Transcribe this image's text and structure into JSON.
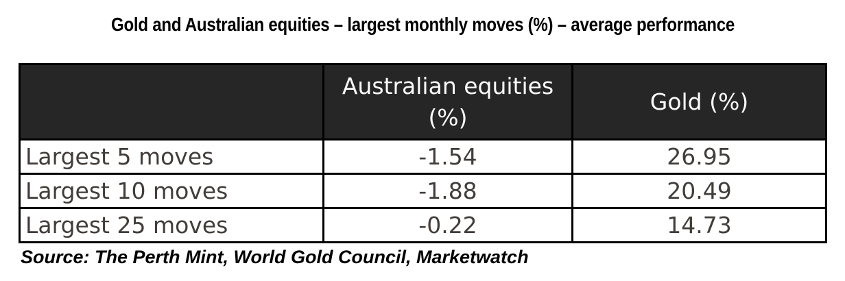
{
  "title": "Gold and Australian equities – largest monthly moves (%) – average performance",
  "source": "Source: The Perth Mint, World Gold Council, Marketwatch",
  "colors": {
    "header_bg": "#262626",
    "header_text": "#fafafa",
    "body_text": "#423d3a",
    "border": "#000000",
    "title_text": "#000000",
    "page_bg": "#ffffff"
  },
  "table": {
    "columns": [
      "",
      "Australian equities (%)",
      "Gold (%)"
    ],
    "rows": [
      {
        "label": "Largest 5 moves",
        "australian_equities": "-1.54",
        "gold": "26.95"
      },
      {
        "label": "Largest 10 moves",
        "australian_equities": "-1.88",
        "gold": "20.49"
      },
      {
        "label": "Largest 25 moves",
        "australian_equities": "-0.22",
        "gold": "14.73"
      }
    ]
  },
  "chart_data": {
    "type": "table",
    "title": "Gold and Australian equities – largest monthly moves (%) – average performance",
    "columns": [
      "",
      "Australian equities (%)",
      "Gold (%)"
    ],
    "rows": [
      [
        "Largest 5 moves",
        -1.54,
        26.95
      ],
      [
        "Largest 10 moves",
        -1.88,
        20.49
      ],
      [
        "Largest 25 moves",
        -0.22,
        14.73
      ]
    ],
    "source": "Source: The Perth Mint, World Gold Council, Marketwatch",
    "layout": {
      "header_style": "dark-fill-white-text",
      "value_columns_aligned": "center",
      "label_column_aligned": "left",
      "grid": "full black borders"
    }
  }
}
